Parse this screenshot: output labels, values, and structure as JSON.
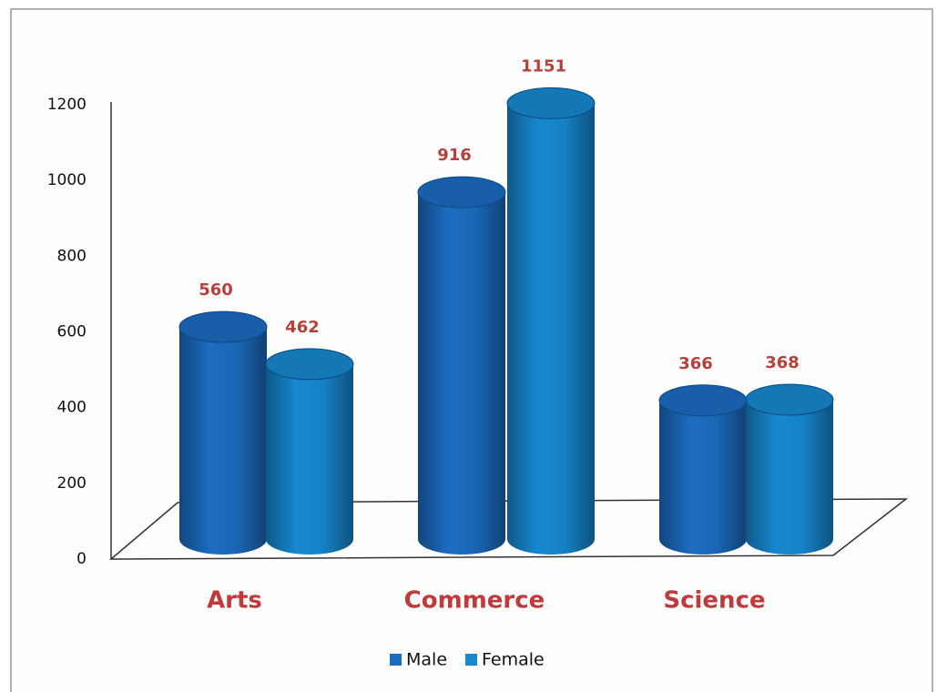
{
  "chart_data": {
    "type": "bar",
    "categories": [
      "Arts",
      "Commerce",
      "Science"
    ],
    "series": [
      {
        "name": "Male",
        "color": "#1c6cc0",
        "values": [
          560,
          916,
          366
        ]
      },
      {
        "name": "Female",
        "color": "#1788d0",
        "values": [
          462,
          1151,
          368
        ]
      }
    ],
    "ylim": [
      0,
      1200
    ],
    "yticks": [
      0,
      200,
      400,
      600,
      800,
      1000,
      1200
    ],
    "grid": false,
    "legend": "bottom"
  }
}
